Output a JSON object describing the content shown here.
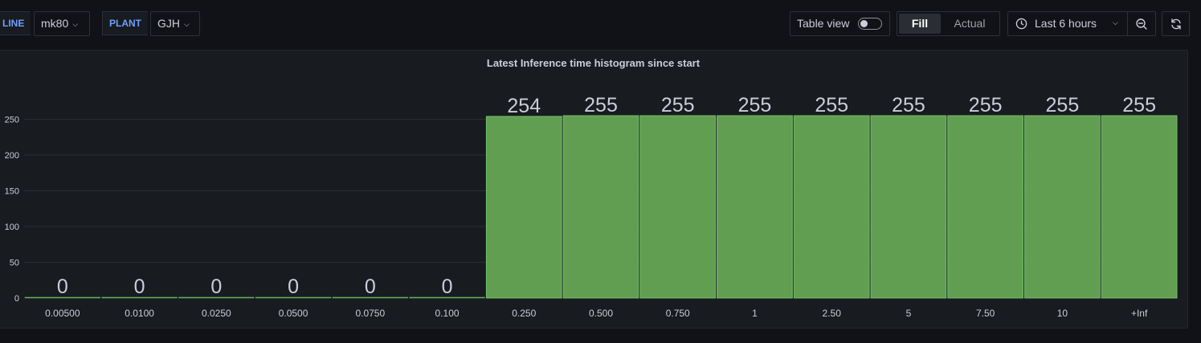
{
  "variables": [
    {
      "label": "LINE",
      "value": "mk80"
    },
    {
      "label": "PLANT",
      "value": "GJH"
    }
  ],
  "toolbar": {
    "table_view_label": "Table view",
    "table_view_on": false,
    "radio_options": [
      "Fill",
      "Actual"
    ],
    "radio_selected": "Fill",
    "time_range": "Last 6 hours"
  },
  "panel": {
    "title": "Latest Inference time histogram since start"
  },
  "chart_data": {
    "type": "bar",
    "title": "Latest Inference time histogram since start",
    "categories": [
      "0.00500",
      "0.0100",
      "0.0250",
      "0.0500",
      "0.0750",
      "0.100",
      "0.250",
      "0.500",
      "0.750",
      "1",
      "2.50",
      "5",
      "7.50",
      "10",
      "+Inf"
    ],
    "values": [
      0,
      0,
      0,
      0,
      0,
      0,
      254,
      255,
      255,
      255,
      255,
      255,
      255,
      255,
      255
    ],
    "value_labels": [
      "0",
      "0",
      "0",
      "0",
      "0",
      "0",
      "254",
      "255",
      "255",
      "255",
      "255",
      "255",
      "255",
      "255",
      "255"
    ],
    "yticks": [
      "0",
      "50",
      "100",
      "150",
      "200",
      "250"
    ],
    "ylim": [
      0,
      255
    ],
    "grid": true,
    "bar_color": "#629e51",
    "bar_stroke": "#73bf69"
  }
}
